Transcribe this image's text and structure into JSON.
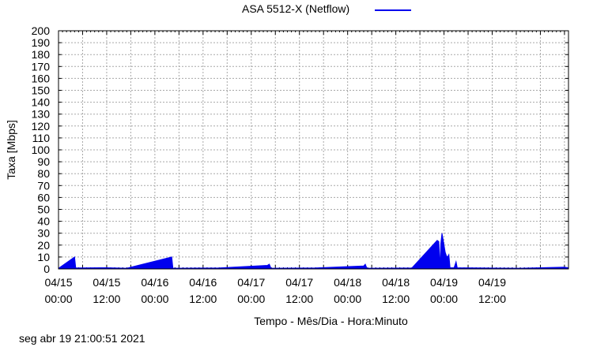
{
  "chart_data": {
    "type": "area",
    "title": "ASA 5512-X (Netflow)",
    "legend": [
      {
        "name": "ASA 5512-X (Netflow)",
        "color": "#0000ee"
      }
    ],
    "legend_position": "top",
    "ylabel": "Taxa [Mbps]",
    "xlabel": "Tempo - Mês/Dia - Hora:Minuto",
    "ylim": [
      0,
      200
    ],
    "y_ticks": [
      0,
      10,
      20,
      30,
      40,
      50,
      60,
      70,
      80,
      90,
      100,
      110,
      120,
      130,
      140,
      150,
      160,
      170,
      180,
      190,
      200
    ],
    "x_range_hours": [
      0,
      127
    ],
    "x_ticks": [
      {
        "h": 0,
        "date": "04/15",
        "time": "00:00"
      },
      {
        "h": 12,
        "date": "04/15",
        "time": "12:00"
      },
      {
        "h": 24,
        "date": "04/16",
        "time": "00:00"
      },
      {
        "h": 36,
        "date": "04/16",
        "time": "12:00"
      },
      {
        "h": 48,
        "date": "04/17",
        "time": "00:00"
      },
      {
        "h": 60,
        "date": "04/17",
        "time": "12:00"
      },
      {
        "h": 72,
        "date": "04/18",
        "time": "00:00"
      },
      {
        "h": 84,
        "date": "04/18",
        "time": "12:00"
      },
      {
        "h": 96,
        "date": "04/19",
        "time": "00:00"
      },
      {
        "h": 108,
        "date": "04/19",
        "time": "12:00"
      }
    ],
    "grid": true,
    "series": [
      {
        "name": "ASA 5512-X (Netflow)",
        "color": "#0000ee",
        "points": [
          [
            0,
            0.5
          ],
          [
            4,
            10
          ],
          [
            4.3,
            0.8
          ],
          [
            12,
            1
          ],
          [
            17,
            0.6
          ],
          [
            28.2,
            10
          ],
          [
            28.5,
            0.6
          ],
          [
            40,
            0.8
          ],
          [
            52,
            3
          ],
          [
            52.5,
            4
          ],
          [
            52.9,
            0.6
          ],
          [
            64,
            0.8
          ],
          [
            76,
            2.5
          ],
          [
            76.4,
            4
          ],
          [
            76.8,
            0.6
          ],
          [
            88,
            0.8
          ],
          [
            94.3,
            24
          ],
          [
            94.7,
            23
          ],
          [
            95.0,
            1
          ],
          [
            95.2,
            21
          ],
          [
            95.5,
            30
          ],
          [
            95.9,
            22
          ],
          [
            96.3,
            14
          ],
          [
            96.6,
            11
          ],
          [
            96.9,
            10
          ],
          [
            97.2,
            12
          ],
          [
            97.5,
            1
          ],
          [
            98.5,
            1
          ],
          [
            99.0,
            6
          ],
          [
            99.3,
            1
          ],
          [
            105,
            0.8
          ],
          [
            115,
            0.6
          ],
          [
            118,
            0.8
          ],
          [
            126,
            1.5
          ],
          [
            127,
            1
          ]
        ]
      }
    ]
  },
  "footer_timestamp": "seg abr 19 21:00:51 2021"
}
